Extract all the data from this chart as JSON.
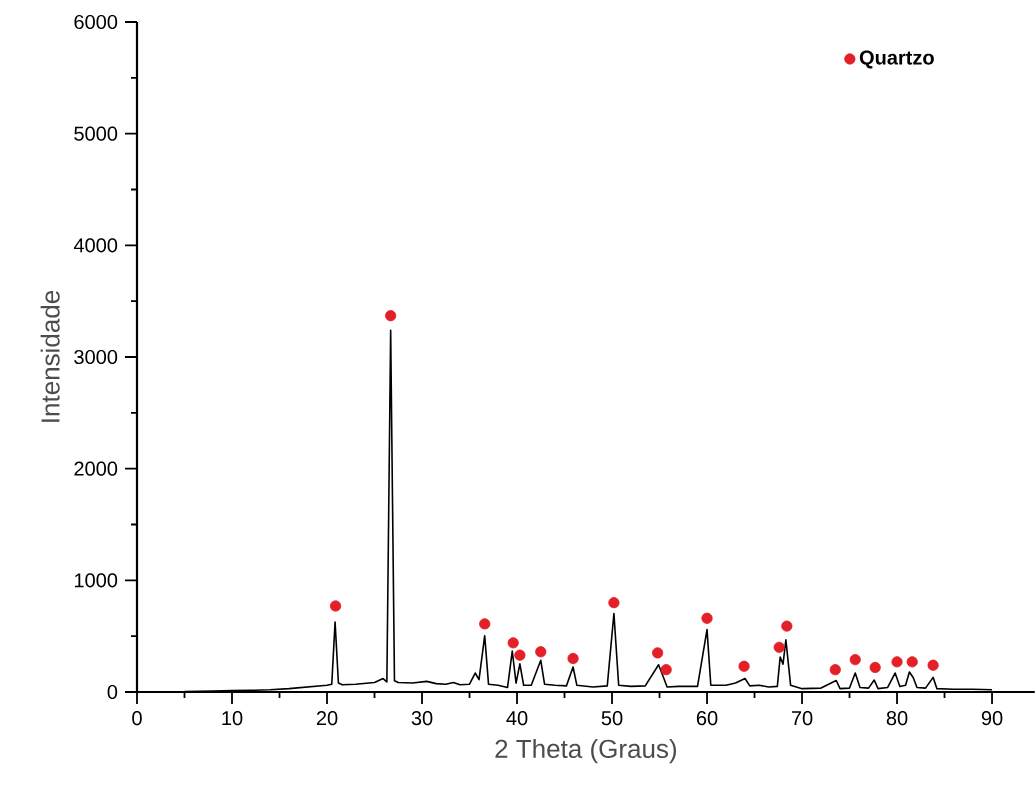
{
  "chart_data": {
    "type": "line",
    "xlabel": "2 Theta (Graus)",
    "ylabel": "Intensidade",
    "xlim": [
      0,
      94.5
    ],
    "ylim": [
      0,
      6000
    ],
    "xticks": [
      0,
      10,
      20,
      30,
      40,
      50,
      60,
      70,
      80,
      90
    ],
    "yticks": [
      0,
      1000,
      2000,
      3000,
      4000,
      5000,
      6000
    ],
    "grid": false,
    "legend": "top right",
    "series": [
      {
        "color": "#000000",
        "marker": "none",
        "x": [
          5,
          8,
          10,
          12,
          14,
          16,
          18,
          20,
          20.5,
          20.85,
          21.2,
          21.6,
          23,
          25,
          25.9,
          26.3,
          26.7,
          27.1,
          27.5,
          29,
          30.5,
          31.5,
          32.5,
          33.3,
          34,
          35,
          35.6,
          36.0,
          36.6,
          37.0,
          38,
          39,
          39.5,
          39.9,
          40.3,
          40.7,
          41.5,
          42.5,
          42.9,
          44,
          45.2,
          45.9,
          46.3,
          48,
          49.5,
          50.2,
          50.7,
          52,
          53.5,
          54.9,
          55.4,
          55.8,
          57,
          59,
          60.0,
          60.4,
          62,
          63,
          64,
          64.5,
          65.5,
          66.5,
          67.4,
          67.7,
          68.0,
          68.3,
          68.8,
          70,
          72,
          73.6,
          74.0,
          75,
          75.6,
          76.1,
          77,
          77.6,
          78.0,
          79,
          79.8,
          80.3,
          80.9,
          81.3,
          81.7,
          82.1,
          83,
          83.8,
          84.2,
          86,
          88,
          90
        ],
        "values": [
          5,
          8,
          12,
          15,
          20,
          30,
          45,
          60,
          70,
          627,
          80,
          65,
          70,
          85,
          120,
          90,
          3240,
          100,
          85,
          80,
          95,
          75,
          70,
          85,
          65,
          70,
          170,
          110,
          504,
          70,
          60,
          40,
          367,
          80,
          252,
          60,
          60,
          284,
          70,
          60,
          55,
          224,
          60,
          45,
          55,
          703,
          60,
          50,
          55,
          244,
          134,
          45,
          50,
          50,
          559,
          60,
          60,
          80,
          121,
          55,
          60,
          45,
          50,
          313,
          250,
          467,
          60,
          30,
          35,
          103,
          30,
          35,
          170,
          40,
          35,
          107,
          30,
          40,
          170,
          50,
          60,
          179,
          130,
          40,
          35,
          131,
          30,
          25,
          25,
          20
        ]
      },
      {
        "type": "scatter",
        "name": "Quartzo",
        "color": "#e32028",
        "marker": "circle",
        "x": [
          20.9,
          26.7,
          36.6,
          39.6,
          40.3,
          42.5,
          45.9,
          50.2,
          54.8,
          55.7,
          60.0,
          63.9,
          67.6,
          68.4,
          73.5,
          75.6,
          77.7,
          80.0,
          81.6,
          83.8
        ],
        "values": [
          770,
          3370,
          610,
          440,
          330,
          360,
          300,
          800,
          350,
          200,
          660,
          230,
          400,
          590,
          200,
          290,
          220,
          270,
          270,
          240
        ]
      }
    ]
  }
}
